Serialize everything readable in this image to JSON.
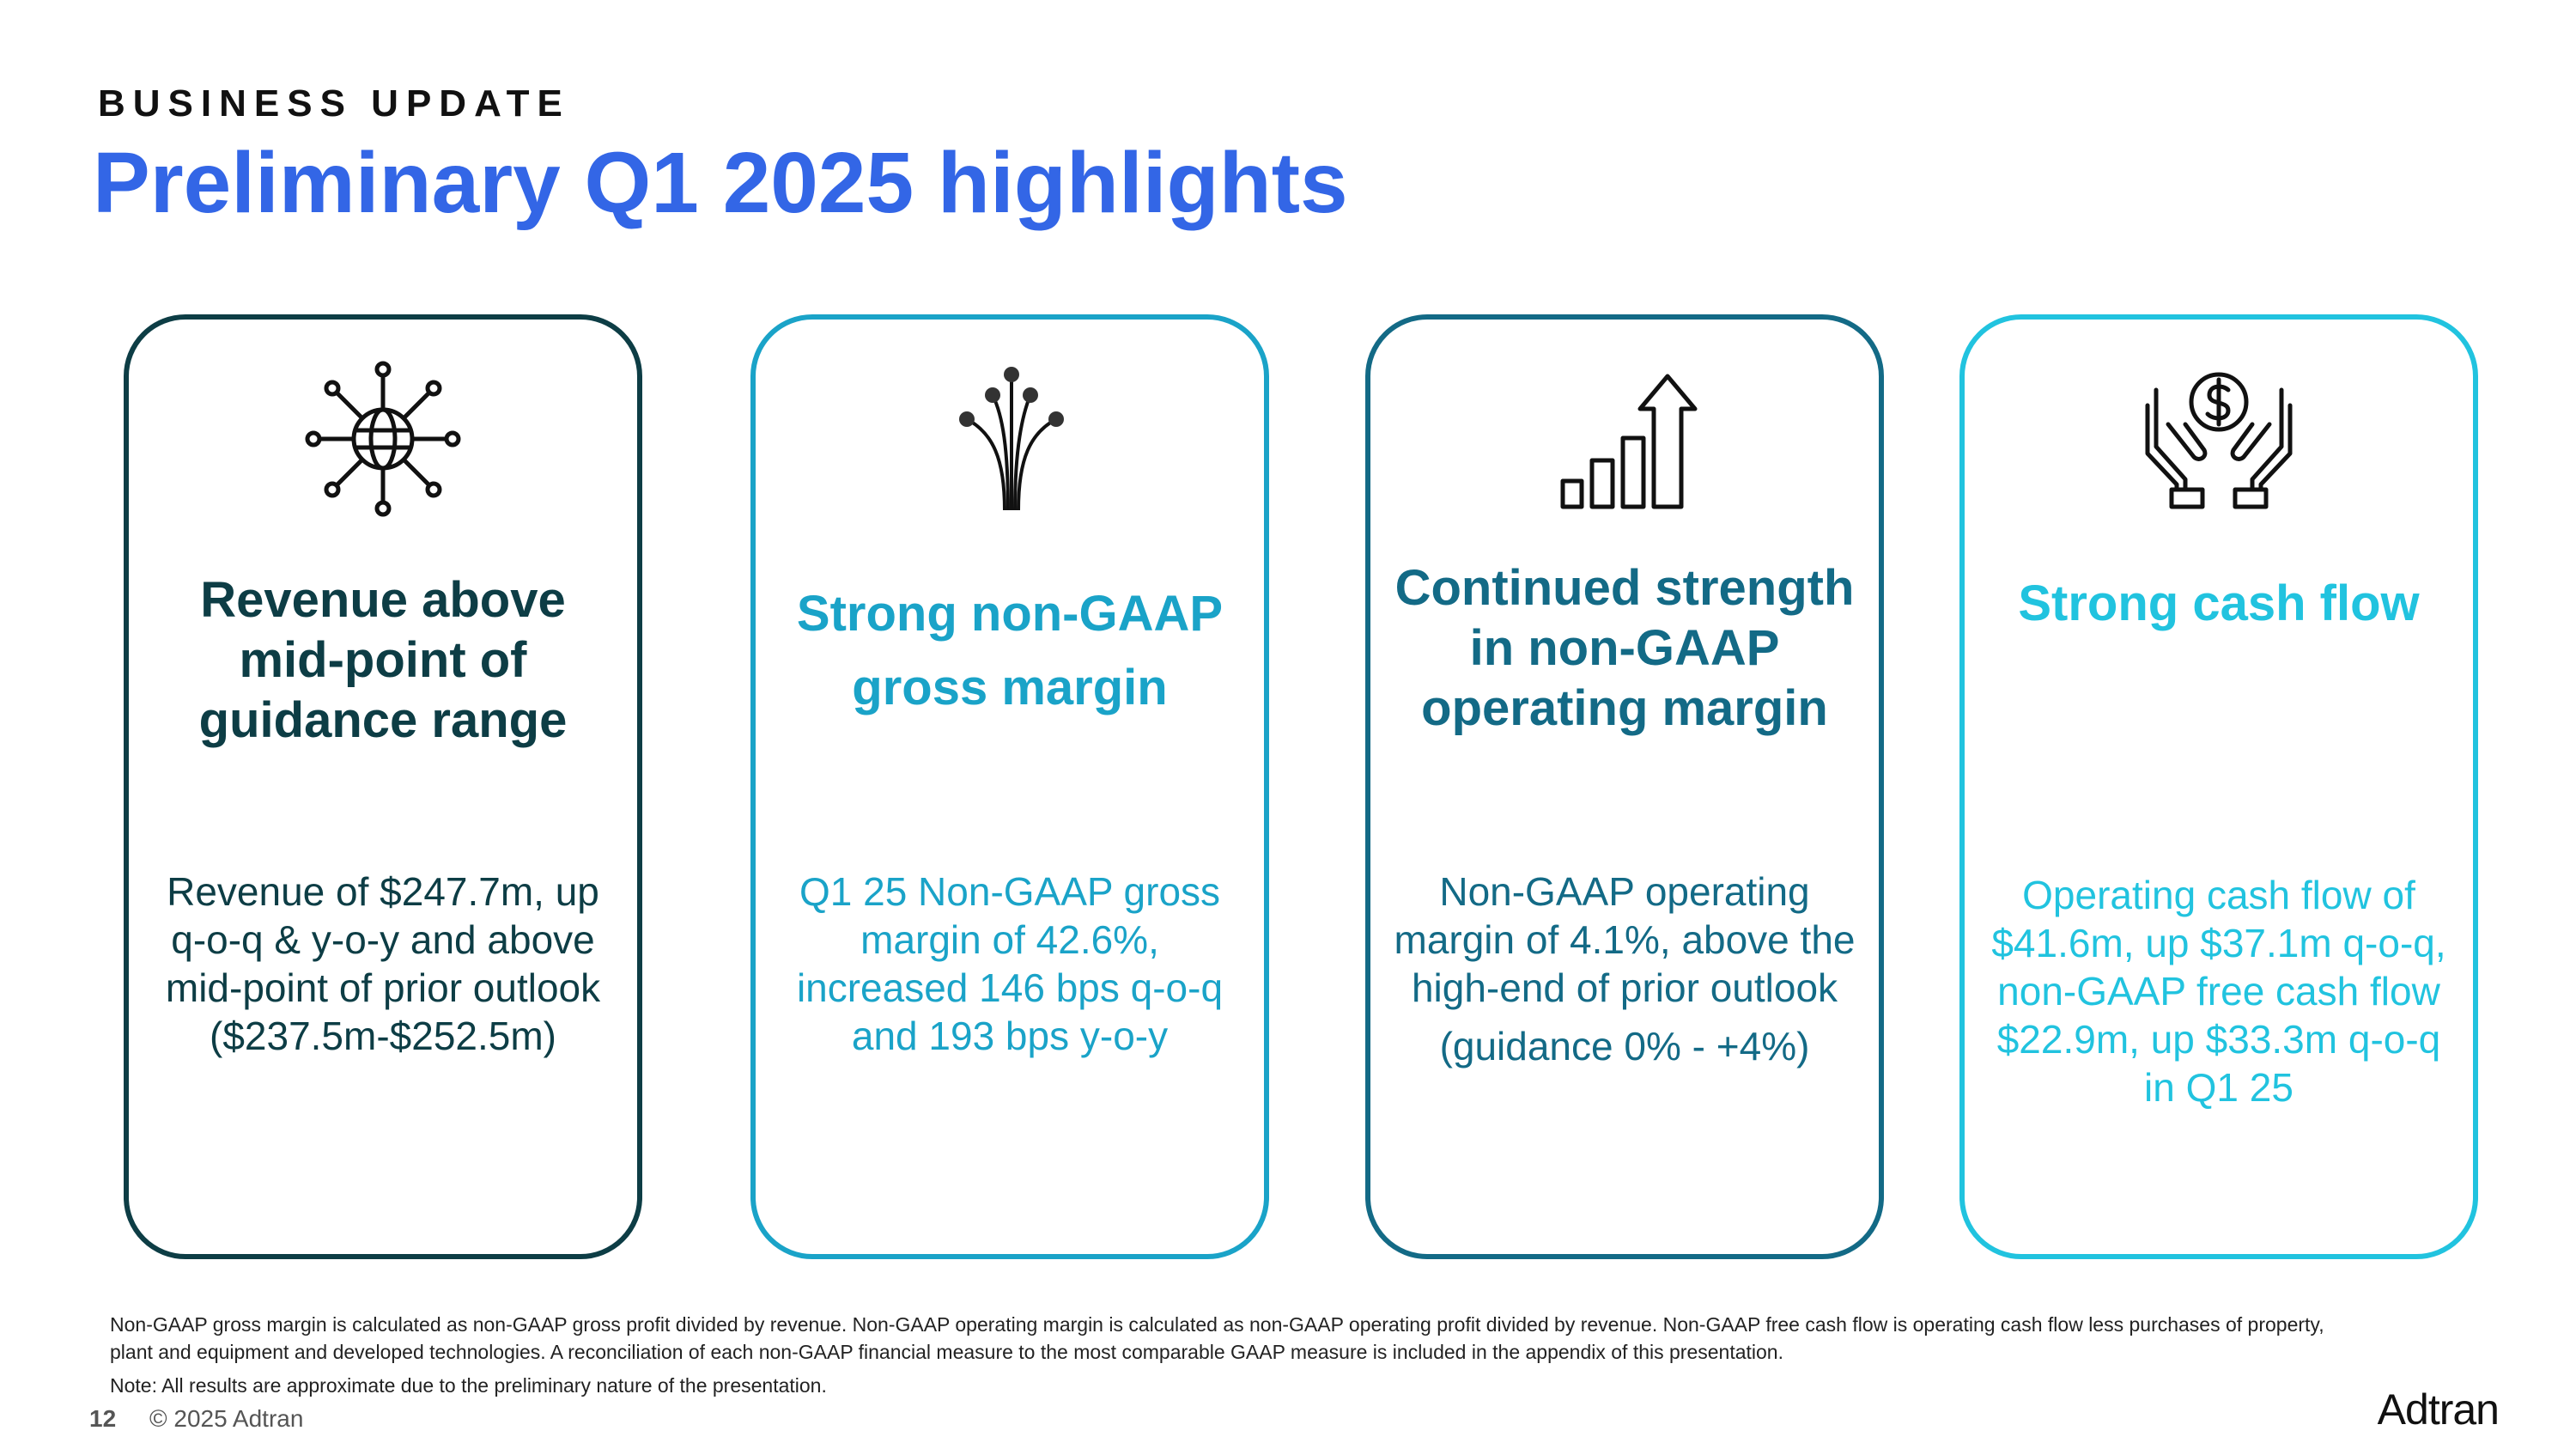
{
  "header": {
    "eyebrow": "BUSINESS UPDATE",
    "title": "Preliminary Q1 2025 highlights"
  },
  "cards": [
    {
      "icon": "globe-network-icon",
      "heading": "Revenue above mid-point of guidance range",
      "body": [
        "Revenue of $247.7m, up q-o-q & y-o-y and above mid-point of prior outlook",
        "($237.5m-$252.5m)"
      ]
    },
    {
      "icon": "fiber-optic-icon",
      "heading": "Strong non-GAAP gross margin",
      "body": [
        "Q1 25 Non-GAAP gross margin of 42.6%, increased 146 bps q-o-q and 193 bps y-o-y"
      ]
    },
    {
      "icon": "bar-chart-up-arrow-icon",
      "heading": "Continued strength in non-GAAP operating margin",
      "body": [
        "Non-GAAP operating margin of 4.1%, above the high-end of prior outlook",
        "(guidance 0% - +4%)"
      ]
    },
    {
      "icon": "hands-dollar-icon",
      "heading": "Strong cash flow",
      "body": [
        "Operating cash flow of $41.6m, up $37.1m q-o-q, non-GAAP free cash flow $22.9m, up $33.3m q-o-q in Q1 25"
      ]
    }
  ],
  "footer": {
    "footnote": "Non-GAAP gross margin is calculated as non-GAAP gross profit divided by revenue. Non-GAAP operating margin is calculated as non-GAAP operating  profit divided by revenue. Non-GAAP free cash flow is operating cash flow less purchases of property, plant and equipment and developed technologies. A reconciliation of each non-GAAP financial measure to the most comparable GAAP measure is included in the appendix of this presentation.",
    "note": "Note: All results are approximate due to the preliminary nature of the presentation.",
    "page_number": "12",
    "copyright": "© 2025 Adtran",
    "logo_text": "Adtran"
  },
  "colors": {
    "title_blue": "#3366e6",
    "card1": "#0d3d45",
    "card2": "#1aa3c8",
    "card3": "#136a86",
    "card4": "#21c3df"
  }
}
